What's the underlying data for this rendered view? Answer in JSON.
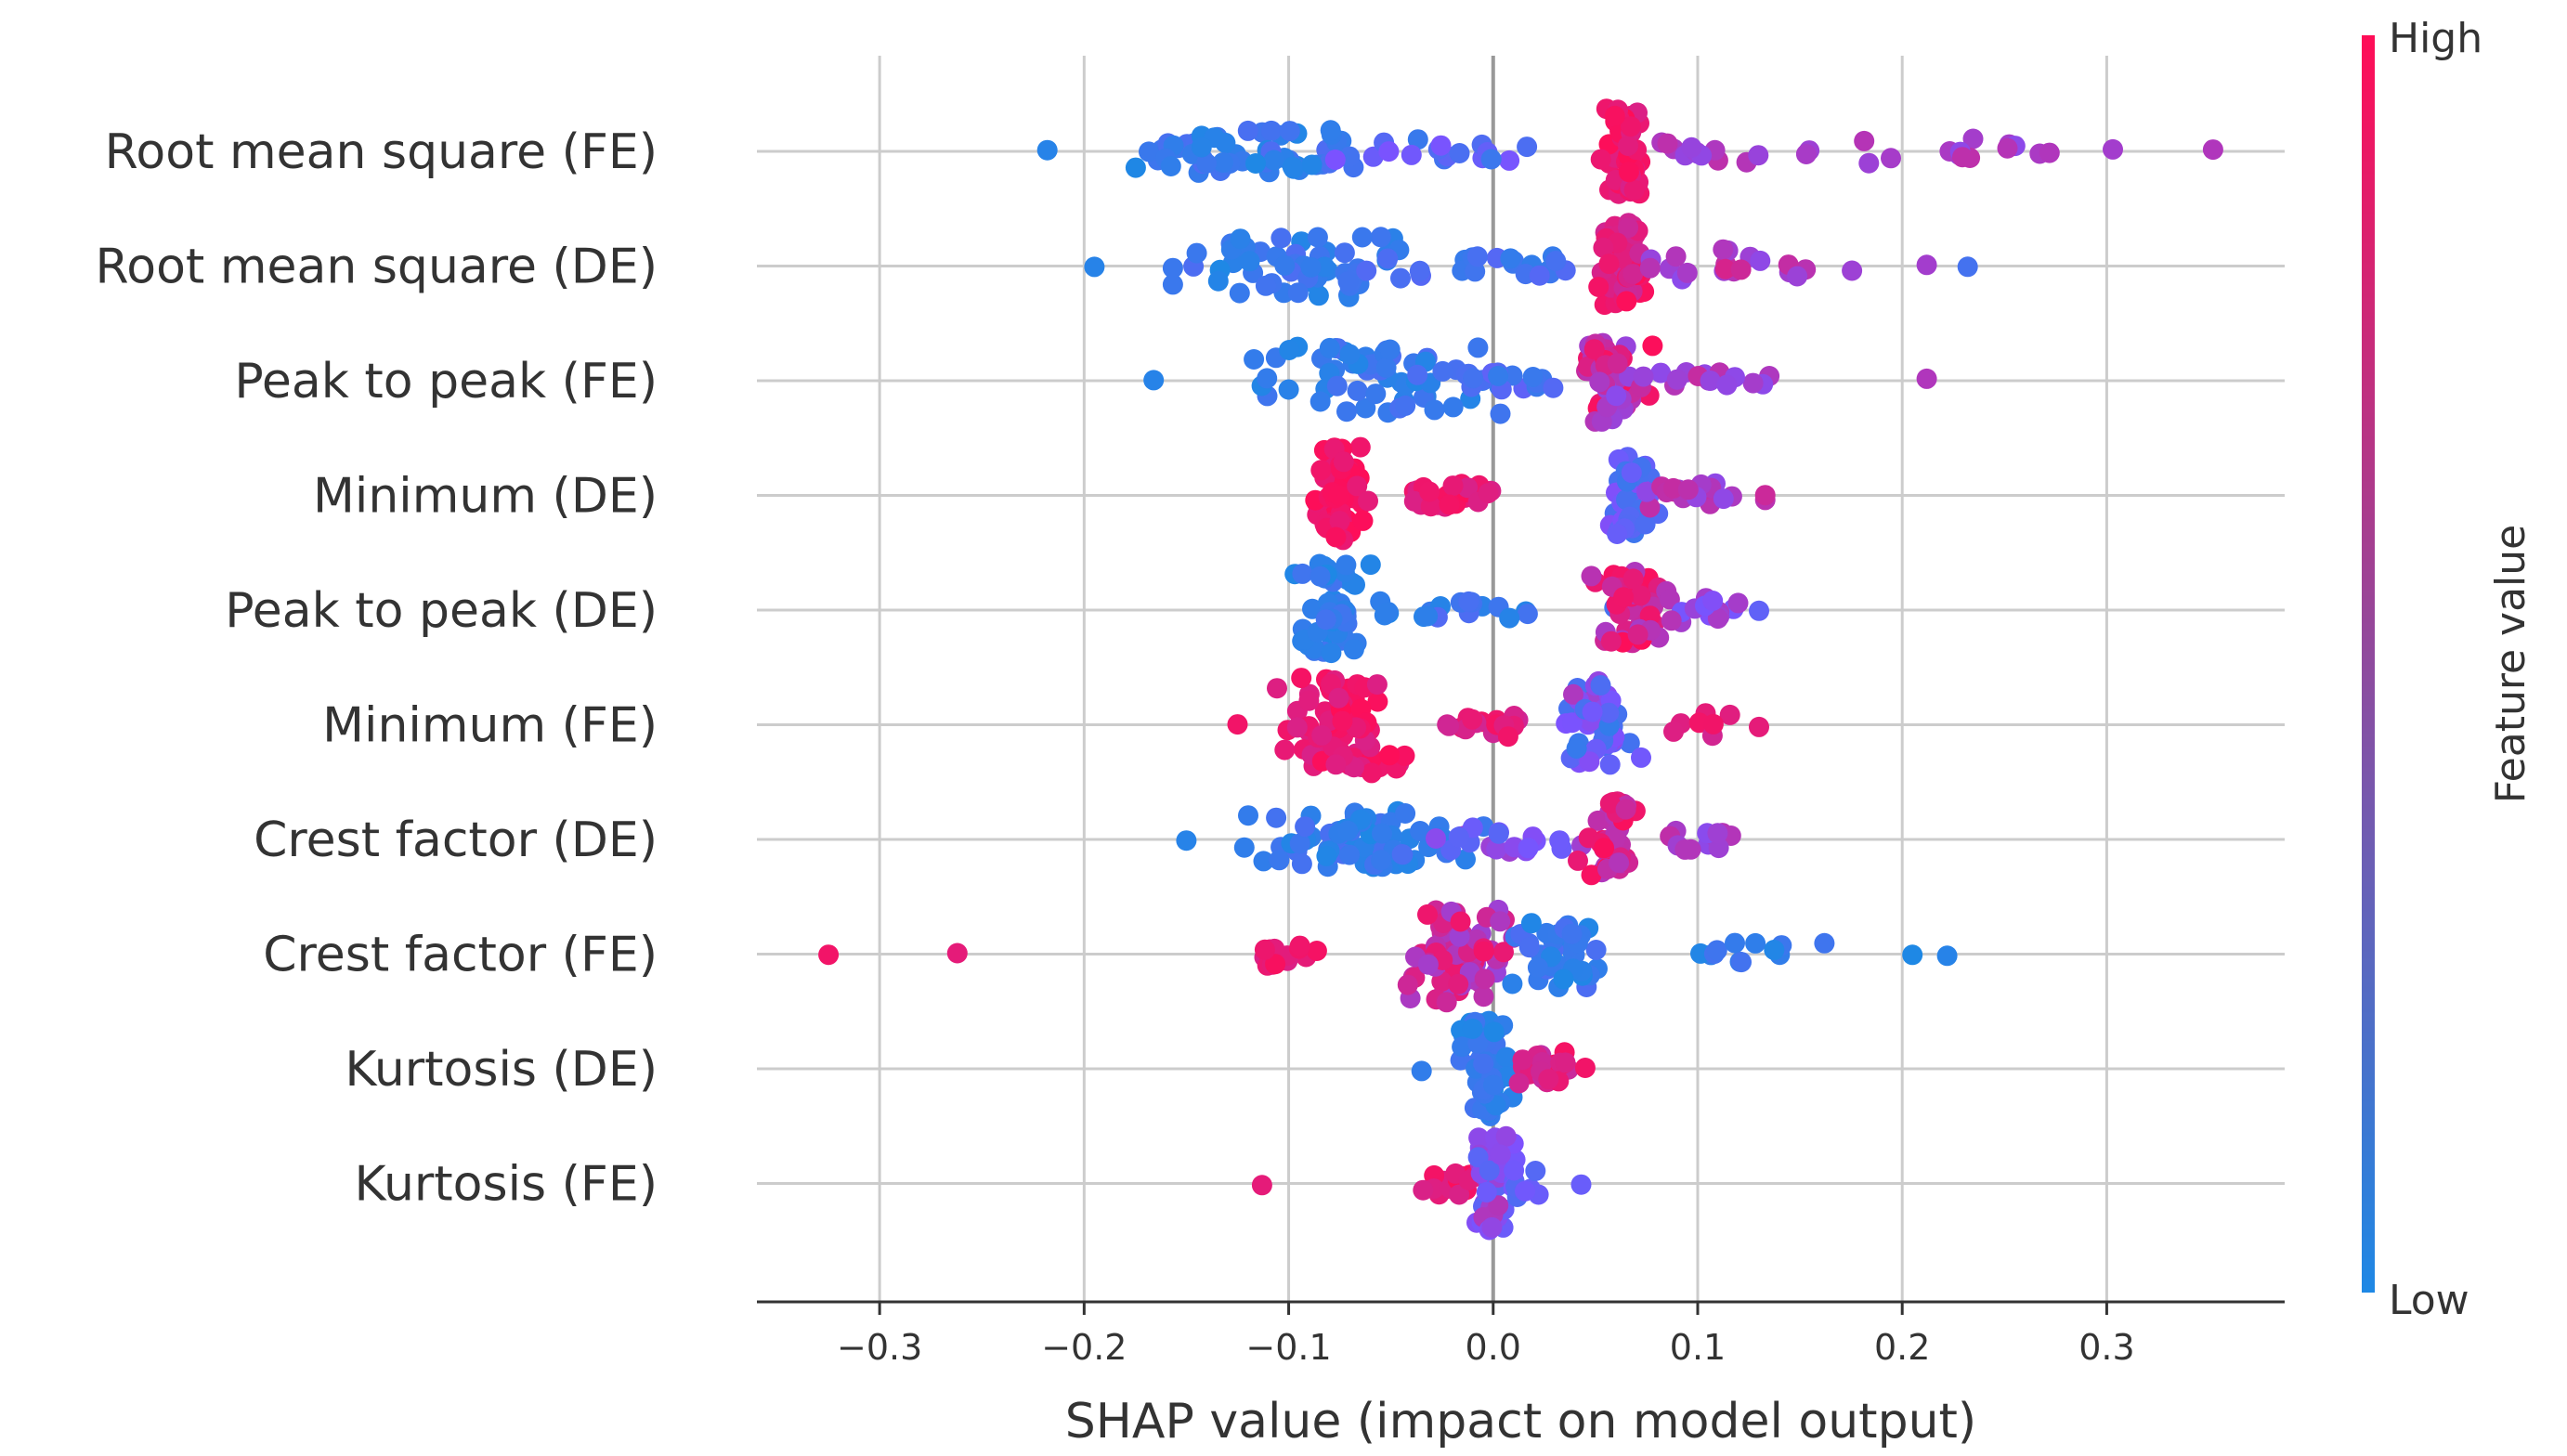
{
  "chart_data": {
    "type": "scatter",
    "subtype": "shap-beeswarm",
    "xlabel": "SHAP value (impact on model output)",
    "xlim": [
      -0.36,
      0.387
    ],
    "xticks": [
      -0.3,
      -0.2,
      -0.1,
      0.0,
      0.1,
      0.2,
      0.3
    ],
    "xtick_labels": [
      "−0.3",
      "−0.2",
      "−0.1",
      "0.0",
      "0.1",
      "0.2",
      "0.3"
    ],
    "vertical_grid": true,
    "horizontal_guides": true,
    "zero_line": true,
    "colorbar": {
      "label": "Feature value",
      "high_label": "High",
      "low_label": "Low",
      "low_color": "#1e88e5",
      "high_color": "#ff0d57"
    },
    "features": [
      {
        "name": "Root mean square (FE)",
        "min": -0.218,
        "max": 0.352,
        "clusters": [
          {
            "center": -0.12,
            "spread": 0.05,
            "count": 60,
            "width": 0.45,
            "feature": [
              0.0,
              0.25
            ]
          },
          {
            "center": -0.02,
            "spread": 0.05,
            "count": 18,
            "width": 0.2,
            "feature": [
              0.15,
              0.5
            ]
          },
          {
            "center": 0.065,
            "spread": 0.008,
            "count": 55,
            "width": 0.9,
            "feature": [
              0.85,
              1.0
            ]
          },
          {
            "center": 0.11,
            "spread": 0.03,
            "count": 14,
            "width": 0.25,
            "feature": [
              0.55,
              0.8
            ]
          },
          {
            "center": 0.23,
            "spread": 0.05,
            "count": 14,
            "width": 0.3,
            "feature": [
              0.55,
              0.75
            ]
          }
        ],
        "outliers": [
          {
            "x": -0.218,
            "f": 0.05
          },
          {
            "x": 0.272,
            "f": 0.7
          },
          {
            "x": 0.303,
            "f": 0.65
          },
          {
            "x": 0.352,
            "f": 0.7
          }
        ]
      },
      {
        "name": "Root mean square (DE)",
        "min": -0.195,
        "max": 0.232,
        "clusters": [
          {
            "center": -0.09,
            "spread": 0.045,
            "count": 60,
            "width": 0.65,
            "feature": [
              0.0,
              0.25
            ]
          },
          {
            "center": 0.0,
            "spread": 0.04,
            "count": 20,
            "width": 0.2,
            "feature": [
              0.1,
              0.3
            ]
          },
          {
            "center": 0.065,
            "spread": 0.008,
            "count": 55,
            "width": 0.9,
            "feature": [
              0.8,
              1.0
            ]
          },
          {
            "center": 0.12,
            "spread": 0.035,
            "count": 22,
            "width": 0.35,
            "feature": [
              0.55,
              0.85
            ]
          }
        ],
        "outliers": [
          {
            "x": -0.195,
            "f": 0.05
          },
          {
            "x": 0.212,
            "f": 0.65
          },
          {
            "x": 0.232,
            "f": 0.2
          }
        ]
      },
      {
        "name": "Peak to peak (FE)",
        "min": -0.166,
        "max": 0.212,
        "clusters": [
          {
            "center": -0.06,
            "spread": 0.045,
            "count": 60,
            "width": 0.7,
            "feature": [
              0.0,
              0.25
            ]
          },
          {
            "center": 0.0,
            "spread": 0.03,
            "count": 18,
            "width": 0.2,
            "feature": [
              0.1,
              0.35
            ]
          },
          {
            "center": 0.058,
            "spread": 0.012,
            "count": 55,
            "width": 0.9,
            "feature": [
              0.55,
              1.0
            ]
          },
          {
            "center": 0.11,
            "spread": 0.03,
            "count": 16,
            "width": 0.25,
            "feature": [
              0.55,
              0.8
            ]
          }
        ],
        "outliers": [
          {
            "x": -0.166,
            "f": 0.05
          },
          {
            "x": 0.212,
            "f": 0.7
          }
        ]
      },
      {
        "name": "Minimum (DE)",
        "min": -0.1,
        "max": 0.133,
        "clusters": [
          {
            "center": -0.076,
            "spread": 0.01,
            "count": 55,
            "width": 1.0,
            "feature": [
              0.9,
              1.0
            ]
          },
          {
            "center": -0.02,
            "spread": 0.025,
            "count": 24,
            "width": 0.25,
            "feature": [
              0.85,
              1.0
            ]
          },
          {
            "center": 0.068,
            "spread": 0.01,
            "count": 45,
            "width": 0.8,
            "feature": [
              0.15,
              0.55
            ]
          },
          {
            "center": 0.1,
            "spread": 0.02,
            "count": 18,
            "width": 0.3,
            "feature": [
              0.55,
              0.8
            ]
          }
        ],
        "outliers": [
          {
            "x": 0.133,
            "f": 0.8
          }
        ]
      },
      {
        "name": "Peak to peak (DE)",
        "min": -0.097,
        "max": 0.13,
        "clusters": [
          {
            "center": -0.078,
            "spread": 0.01,
            "count": 50,
            "width": 1.0,
            "feature": [
              0.0,
              0.2
            ]
          },
          {
            "center": -0.01,
            "spread": 0.04,
            "count": 20,
            "width": 0.2,
            "feature": [
              0.0,
              0.3
            ]
          },
          {
            "center": 0.066,
            "spread": 0.01,
            "count": 50,
            "width": 0.8,
            "feature": [
              0.65,
              1.0
            ]
          },
          {
            "center": 0.1,
            "spread": 0.02,
            "count": 15,
            "width": 0.25,
            "feature": [
              0.45,
              0.75
            ]
          }
        ],
        "outliers": [
          {
            "x": 0.13,
            "f": 0.35
          }
        ]
      },
      {
        "name": "Minimum (FE)",
        "min": -0.125,
        "max": 0.13,
        "clusters": [
          {
            "center": -0.075,
            "spread": 0.022,
            "count": 70,
            "width": 1.0,
            "feature": [
              0.85,
              1.0
            ]
          },
          {
            "center": -0.005,
            "spread": 0.02,
            "count": 18,
            "width": 0.25,
            "feature": [
              0.8,
              1.0
            ]
          },
          {
            "center": 0.05,
            "spread": 0.012,
            "count": 55,
            "width": 0.9,
            "feature": [
              0.1,
              0.7
            ]
          },
          {
            "center": 0.105,
            "spread": 0.015,
            "count": 8,
            "width": 0.25,
            "feature": [
              0.8,
              1.0
            ]
          }
        ],
        "outliers": [
          {
            "x": -0.125,
            "f": 0.95
          },
          {
            "x": 0.13,
            "f": 0.9
          }
        ]
      },
      {
        "name": "Crest factor (DE)",
        "min": -0.15,
        "max": 0.13,
        "clusters": [
          {
            "center": -0.06,
            "spread": 0.045,
            "count": 70,
            "width": 0.6,
            "feature": [
              0.0,
              0.25
            ]
          },
          {
            "center": 0.01,
            "spread": 0.025,
            "count": 20,
            "width": 0.25,
            "feature": [
              0.3,
              0.65
            ]
          },
          {
            "center": 0.058,
            "spread": 0.01,
            "count": 45,
            "width": 0.8,
            "feature": [
              0.7,
              1.0
            ]
          },
          {
            "center": 0.1,
            "spread": 0.02,
            "count": 12,
            "width": 0.25,
            "feature": [
              0.55,
              0.8
            ]
          }
        ],
        "outliers": [
          {
            "x": -0.15,
            "f": 0.05
          }
        ]
      },
      {
        "name": "Crest factor (FE)",
        "min": -0.325,
        "max": 0.222,
        "clusters": [
          {
            "center": -0.1,
            "spread": 0.012,
            "count": 14,
            "width": 0.25,
            "feature": [
              0.85,
              1.0
            ]
          },
          {
            "center": -0.015,
            "spread": 0.025,
            "count": 65,
            "width": 1.0,
            "feature": [
              0.6,
              0.95
            ]
          },
          {
            "center": 0.035,
            "spread": 0.02,
            "count": 40,
            "width": 0.7,
            "feature": [
              0.0,
              0.25
            ]
          },
          {
            "center": 0.12,
            "spread": 0.035,
            "count": 12,
            "width": 0.25,
            "feature": [
              0.0,
              0.2
            ]
          }
        ],
        "outliers": [
          {
            "x": -0.325,
            "f": 0.95
          },
          {
            "x": -0.262,
            "f": 0.9
          },
          {
            "x": 0.205,
            "f": 0.0
          },
          {
            "x": 0.222,
            "f": 0.05
          }
        ]
      },
      {
        "name": "Kurtosis (DE)",
        "min": -0.035,
        "max": 0.045,
        "clusters": [
          {
            "center": -0.005,
            "spread": 0.01,
            "count": 55,
            "width": 1.0,
            "feature": [
              0.0,
              0.2
            ]
          },
          {
            "center": 0.025,
            "spread": 0.01,
            "count": 25,
            "width": 0.35,
            "feature": [
              0.75,
              1.0
            ]
          }
        ],
        "outliers": [
          {
            "x": -0.035,
            "f": 0.1
          },
          {
            "x": 0.045,
            "f": 0.95
          }
        ]
      },
      {
        "name": "Kurtosis (FE)",
        "min": -0.113,
        "max": 0.043,
        "clusters": [
          {
            "center": -0.015,
            "spread": 0.01,
            "count": 18,
            "width": 0.25,
            "feature": [
              0.85,
              1.0
            ]
          },
          {
            "center": 0.0,
            "spread": 0.007,
            "count": 45,
            "width": 1.0,
            "feature": [
              0.3,
              0.75
            ]
          },
          {
            "center": 0.015,
            "spread": 0.008,
            "count": 10,
            "width": 0.3,
            "feature": [
              0.25,
              0.5
            ]
          }
        ],
        "outliers": [
          {
            "x": -0.113,
            "f": 0.9
          },
          {
            "x": 0.043,
            "f": 0.4
          }
        ]
      }
    ]
  }
}
